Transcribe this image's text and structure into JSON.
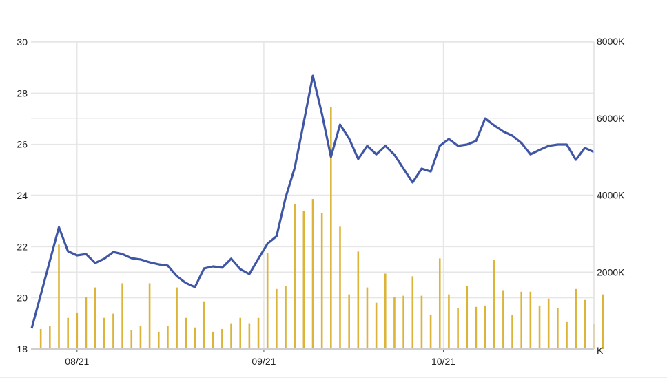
{
  "chart_data": {
    "type": "line+bar",
    "title": "",
    "xlabel": "",
    "ylabel": "",
    "x_unit": "trading day index",
    "x_ticks": [
      {
        "label": "08/21",
        "x": 5
      },
      {
        "label": "09/21",
        "x": 25.6
      },
      {
        "label": "10/21",
        "x": 45.4
      }
    ],
    "y_left": {
      "range": [
        18,
        30
      ],
      "ticks": [
        18,
        20,
        22,
        24,
        26,
        28,
        30
      ],
      "tick_labels": [
        "18",
        "20",
        "22",
        "24",
        "26",
        "28",
        "30"
      ]
    },
    "y_right": {
      "range": [
        0,
        8000
      ],
      "ticks": [
        0,
        2000,
        4000,
        6000,
        8000
      ],
      "tick_labels": [
        "K",
        "2000K",
        "4000K",
        "6000K",
        "8000K"
      ]
    },
    "grid": true,
    "series": [
      {
        "type": "line",
        "axis": "left",
        "color": "#3f56a5",
        "values": [
          18.81,
          20.13,
          21.44,
          22.76,
          21.82,
          21.66,
          21.71,
          21.36,
          21.53,
          21.79,
          21.71,
          21.55,
          21.5,
          21.39,
          21.31,
          21.26,
          20.85,
          20.58,
          20.42,
          21.15,
          21.23,
          21.18,
          21.53,
          21.12,
          20.93,
          21.53,
          22.12,
          22.41,
          23.92,
          25.08,
          26.85,
          28.68,
          27.2,
          25.51,
          26.77,
          26.23,
          25.43,
          25.94,
          25.61,
          25.94,
          25.59,
          25.05,
          24.51,
          25.05,
          24.94,
          25.94,
          26.21,
          25.94,
          25.99,
          26.13,
          27.01,
          26.74,
          26.5,
          26.34,
          26.05,
          25.61,
          25.78,
          25.94,
          25.99,
          25.99,
          25.4,
          25.86,
          25.7
        ]
      },
      {
        "type": "bar",
        "axis": "right",
        "unit": "K",
        "color": "#dcb43a",
        "start_index": 1,
        "values": [
          520,
          590,
          2715,
          810,
          950,
          1350,
          1600,
          810,
          920,
          1710,
          490,
          590,
          1710,
          450,
          590,
          1600,
          810,
          560,
          1240,
          450,
          520,
          670,
          810,
          670,
          810,
          2500,
          1560,
          1640,
          3760,
          3580,
          3900,
          3540,
          6300,
          3180,
          1420,
          2535,
          1600,
          1205,
          1960,
          1350,
          1385,
          1890,
          1385,
          880,
          2355,
          1420,
          1060,
          1640,
          1095,
          1130,
          2320,
          1530,
          880,
          1490,
          1490,
          1130,
          1310,
          1060,
          700,
          1560,
          1275,
          665,
          1420
        ]
      }
    ]
  }
}
